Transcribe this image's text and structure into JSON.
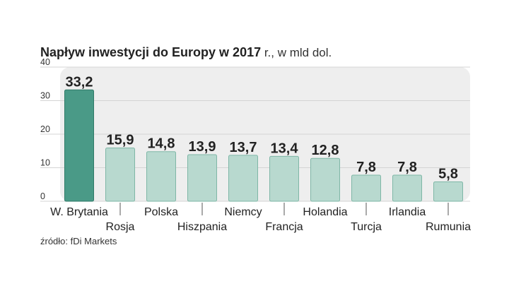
{
  "colors": {
    "highlight_bar": "#4a9a87",
    "highlight_stroke": "#2f7a68",
    "bar": "#b8d9cf",
    "bar_stroke": "#7fb7a7",
    "panel": "#eeeeee",
    "grid": "#d4d4d4"
  },
  "chart_data": {
    "type": "bar",
    "title": "Napływ inwestycji do Europy w 2017",
    "title_suffix": " r., w mld dol.",
    "categories": [
      "W. Brytania",
      "Rosja",
      "Polska",
      "Hiszpania",
      "Niemcy",
      "Francja",
      "Holandia",
      "Turcja",
      "Irlandia",
      "Rumunia"
    ],
    "values": [
      33.2,
      15.9,
      14.8,
      13.9,
      13.7,
      13.4,
      12.8,
      7.8,
      7.8,
      5.8
    ],
    "value_labels": [
      "33,2",
      "15,9",
      "14,8",
      "13,9",
      "13,7",
      "13,4",
      "12,8",
      "7,8",
      "7,8",
      "5,8"
    ],
    "highlight_index": 0,
    "ylim": [
      0,
      40
    ],
    "yticks": [
      0,
      10,
      20,
      30,
      40
    ],
    "grid": true,
    "xlabel": "",
    "ylabel": "",
    "source": "źródło: fDi Markets"
  }
}
